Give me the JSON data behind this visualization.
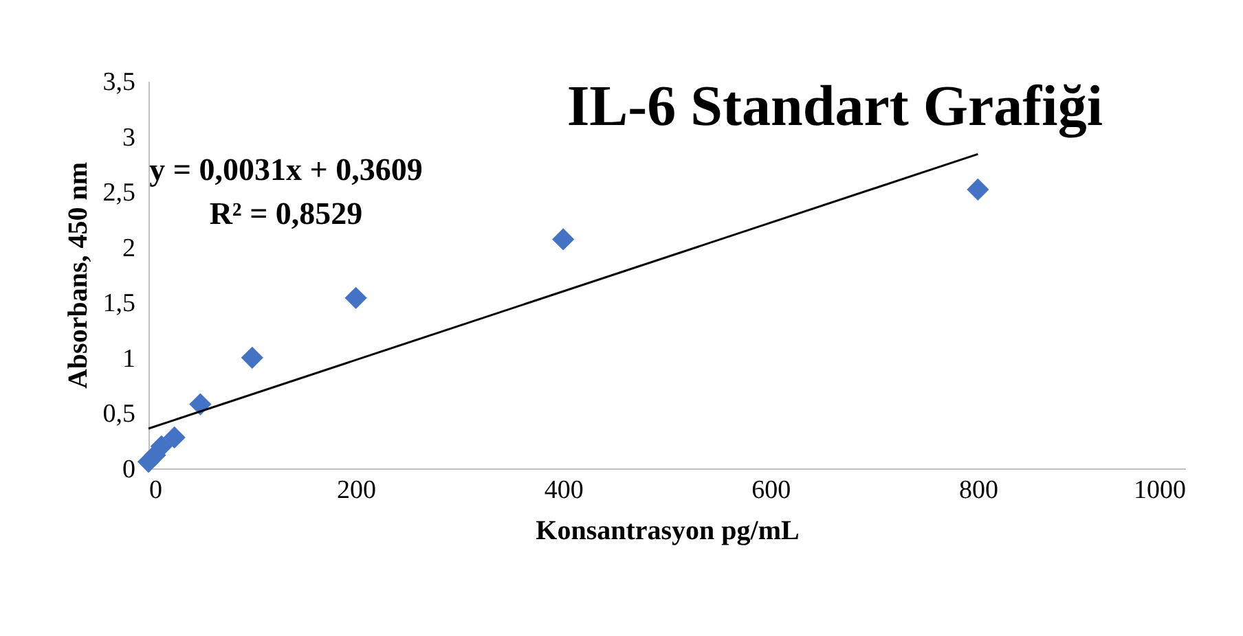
{
  "chart_data": {
    "type": "scatter",
    "title": "IL-6 Standart Grafiği",
    "xlabel": "Konsantrasyon  pg/mL",
    "ylabel": "Absorbans, 450 nm",
    "annotations": [
      "y = 0,0031x + 0,3609",
      "R² = 0,8529"
    ],
    "xlim": [
      0,
      1000
    ],
    "xticks": [
      0,
      200,
      400,
      600,
      800,
      1000
    ],
    "ylim": [
      0,
      3.5
    ],
    "yticks": [
      0,
      {
        "value": 0.5,
        "label": "0,5"
      },
      1,
      {
        "value": 1.5,
        "label": "1,5"
      },
      2,
      {
        "value": 2.5,
        "label": "2,5"
      },
      3,
      {
        "value": 3.5,
        "label": "3,5"
      }
    ],
    "series": [
      {
        "marker": "diamond",
        "color": "#4472c4",
        "x": [
          0,
          6.25,
          12.5,
          25,
          50,
          100,
          200,
          400,
          800
        ],
        "values": [
          0.06,
          0.12,
          0.2,
          0.28,
          0.58,
          1.0,
          1.54,
          2.07,
          2.52
        ]
      },
      {
        "type": "line",
        "color": "#000000",
        "x": [
          0,
          800
        ],
        "values": [
          0.36,
          2.84
        ]
      }
    ]
  }
}
